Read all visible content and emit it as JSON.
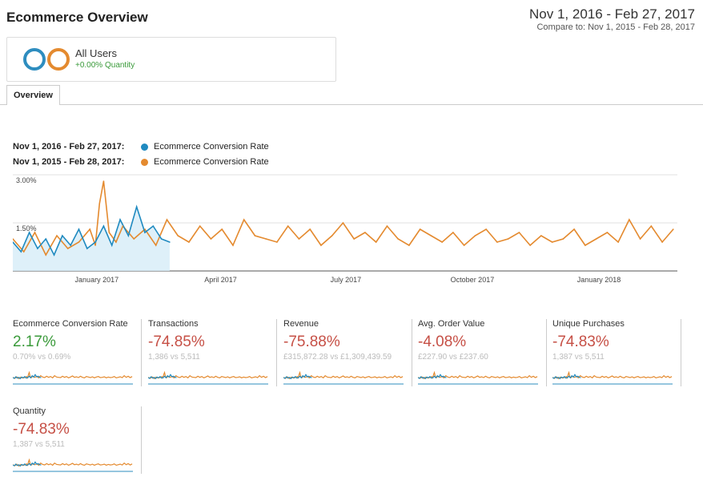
{
  "header": {
    "title": "Ecommerce Overview",
    "date_range": "Nov 1, 2016 - Feb 27, 2017",
    "compare": "Compare to: Nov 1, 2015 - Feb 28, 2017"
  },
  "segment": {
    "name": "All Users",
    "delta": "+0.00% Quantity",
    "colors": [
      "#2e8dbf",
      "#e48a2f"
    ]
  },
  "tabs": [
    {
      "label": "Overview"
    }
  ],
  "legend": [
    {
      "period": "Nov 1, 2016 - Feb 27, 2017:",
      "metric": "Ecommerce Conversion Rate",
      "color": "#1f8ac0"
    },
    {
      "period": "Nov 1, 2015 - Feb 28, 2017:",
      "metric": "Ecommerce Conversion Rate",
      "color": "#e48a2f"
    }
  ],
  "chart_data": {
    "type": "line",
    "title": "",
    "y_ticks": [
      "3.00%",
      "1.50%"
    ],
    "y_tick_values": [
      3.0,
      1.5
    ],
    "ylim": [
      0,
      3.0
    ],
    "x_ticks": [
      "January 2017",
      "April 2017",
      "July 2017",
      "October 2017",
      "January 2018"
    ],
    "x_tick_days": [
      61,
      151,
      242,
      334,
      426
    ],
    "x_range_days": [
      0,
      483
    ],
    "grid": true,
    "series": [
      {
        "name": "Nov 1, 2016 - Feb 27, 2017",
        "color": "#1f8ac0",
        "x_days": [
          0,
          6,
          12,
          18,
          24,
          30,
          36,
          42,
          48,
          54,
          60,
          66,
          72,
          78,
          84,
          90,
          96,
          102,
          108,
          114
        ],
        "values": [
          0.9,
          0.6,
          1.2,
          0.7,
          1.0,
          0.5,
          1.1,
          0.8,
          1.3,
          0.7,
          0.9,
          1.4,
          0.8,
          1.6,
          1.1,
          2.0,
          1.2,
          1.4,
          1.0,
          0.9
        ]
      },
      {
        "name": "Nov 1, 2015 - Feb 28, 2017",
        "color": "#e48a2f",
        "x_days": [
          0,
          8,
          16,
          24,
          32,
          40,
          48,
          56,
          60,
          63,
          66,
          70,
          75,
          80,
          88,
          96,
          104,
          112,
          120,
          128,
          136,
          144,
          152,
          160,
          168,
          176,
          184,
          192,
          200,
          208,
          216,
          224,
          232,
          240,
          248,
          256,
          264,
          272,
          280,
          288,
          296,
          304,
          312,
          320,
          328,
          336,
          344,
          352,
          360,
          368,
          376,
          384,
          392,
          400,
          408,
          416,
          424,
          432,
          440,
          448,
          456,
          464,
          472,
          480
        ],
        "values": [
          1.0,
          0.6,
          1.2,
          0.5,
          1.1,
          0.7,
          0.9,
          1.3,
          0.8,
          2.1,
          2.8,
          1.2,
          0.9,
          1.4,
          1.0,
          1.3,
          0.8,
          1.6,
          1.1,
          0.9,
          1.4,
          1.0,
          1.3,
          0.8,
          1.6,
          1.1,
          1.0,
          0.9,
          1.4,
          1.0,
          1.3,
          0.8,
          1.1,
          1.5,
          1.0,
          1.2,
          0.9,
          1.4,
          1.0,
          0.8,
          1.3,
          1.1,
          0.9,
          1.2,
          0.8,
          1.1,
          1.3,
          0.9,
          1.0,
          1.2,
          0.8,
          1.1,
          0.9,
          1.0,
          1.3,
          0.8,
          1.0,
          1.2,
          0.9,
          1.6,
          1.0,
          1.4,
          0.9,
          1.3
        ]
      }
    ]
  },
  "metrics": [
    {
      "label": "Ecommerce Conversion Rate",
      "value": "2.17%",
      "trend": "up",
      "sub": "0.70% vs 0.69%"
    },
    {
      "label": "Transactions",
      "value": "-74.85%",
      "trend": "down",
      "sub": "1,386 vs 5,511"
    },
    {
      "label": "Revenue",
      "value": "-75.88%",
      "trend": "down",
      "sub": "£315,872.28 vs £1,309,439.59"
    },
    {
      "label": "Avg. Order Value",
      "value": "-4.08%",
      "trend": "down",
      "sub": "£227.90 vs £237.60"
    },
    {
      "label": "Unique Purchases",
      "value": "-74.83%",
      "trend": "down",
      "sub": "1,387 vs 5,511"
    },
    {
      "label": "Quantity",
      "value": "-74.83%",
      "trend": "down",
      "sub": "1,387 vs 5,511"
    }
  ]
}
